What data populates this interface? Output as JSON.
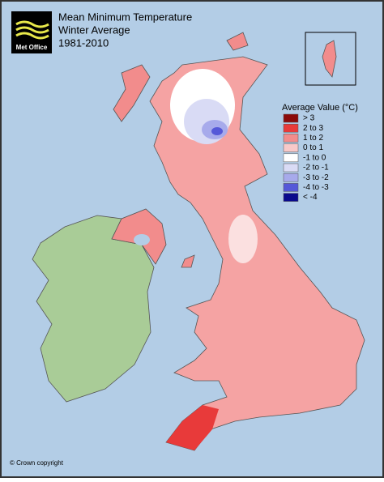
{
  "header": {
    "logo": "Met Office",
    "title_lines": [
      "Mean Minimum Temperature",
      "Winter Average",
      "1981-2010"
    ]
  },
  "legend": {
    "title": "Average Value (°C)",
    "items": [
      {
        "label": "> 3",
        "color": "#8b0a0a"
      },
      {
        "label": "2 to 3",
        "color": "#e83a3a"
      },
      {
        "label": "1 to 2",
        "color": "#f28c8c"
      },
      {
        "label": "0 to 1",
        "color": "#f8c9c9"
      },
      {
        "label": "-1 to 0",
        "color": "#ffffff"
      },
      {
        "label": "-2 to -1",
        "color": "#d9dbf5"
      },
      {
        "label": "-3 to -2",
        "color": "#a7aaeb"
      },
      {
        "label": "-4 to -3",
        "color": "#5558d8"
      },
      {
        "label": "< -4",
        "color": "#0a0a8c"
      }
    ]
  },
  "footer": {
    "copyright": "© Crown copyright"
  }
}
